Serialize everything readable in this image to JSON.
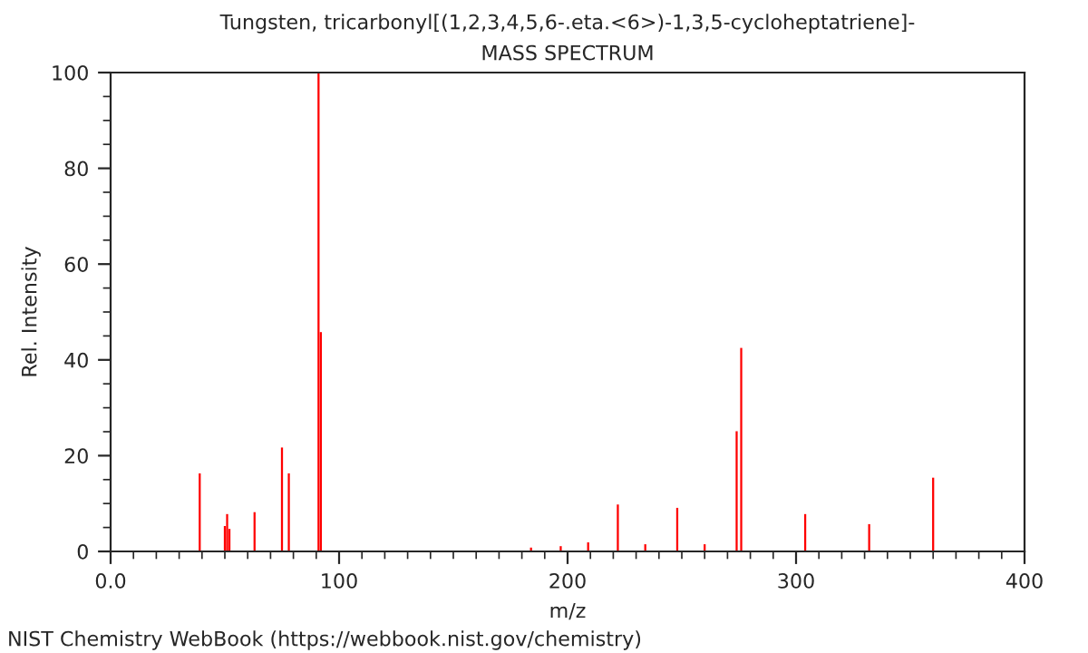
{
  "chart_data": {
    "type": "bar",
    "title": "Tungsten, tricarbonyl[(1,2,3,4,5,6-.eta.<6>)-1,3,5-cycloheptatriene]-",
    "subtitle": "MASS SPECTRUM",
    "xlabel": "m/z",
    "ylabel": "Rel. Intensity",
    "x": [
      39,
      50,
      51,
      52,
      63,
      75,
      78,
      91,
      92,
      184,
      197,
      209,
      222,
      234,
      248,
      260,
      274,
      276,
      304,
      332,
      360
    ],
    "values": [
      16.3,
      5.3,
      7.8,
      4.7,
      8.2,
      21.7,
      16.3,
      100,
      45.8,
      0.8,
      1.1,
      1.9,
      9.8,
      1.5,
      9.1,
      1.5,
      25.1,
      42.5,
      7.8,
      5.7,
      15.4
    ],
    "color": "#ff0000",
    "xlim": [
      0,
      400
    ],
    "ylim": [
      0,
      100
    ],
    "xticks": [
      {
        "value": 0,
        "label": "0.0"
      },
      {
        "value": 10,
        "label": null
      },
      {
        "value": 20,
        "label": null
      },
      {
        "value": 30,
        "label": null
      },
      {
        "value": 40,
        "label": null
      },
      {
        "value": 50,
        "label": null
      },
      {
        "value": 60,
        "label": null
      },
      {
        "value": 70,
        "label": null
      },
      {
        "value": 80,
        "label": null
      },
      {
        "value": 90,
        "label": null
      },
      100,
      {
        "value": 110,
        "label": null
      },
      {
        "value": 120,
        "label": null
      },
      {
        "value": 130,
        "label": null
      },
      {
        "value": 140,
        "label": null
      },
      {
        "value": 150,
        "label": null
      },
      {
        "value": 160,
        "label": null
      },
      {
        "value": 170,
        "label": null
      },
      {
        "value": 180,
        "label": null
      },
      {
        "value": 190,
        "label": null
      },
      200,
      {
        "value": 210,
        "label": null
      },
      {
        "value": 220,
        "label": null
      },
      {
        "value": 230,
        "label": null
      },
      {
        "value": 240,
        "label": null
      },
      {
        "value": 250,
        "label": null
      },
      {
        "value": 260,
        "label": null
      },
      {
        "value": 270,
        "label": null
      },
      {
        "value": 280,
        "label": null
      },
      {
        "value": 290,
        "label": null
      },
      300,
      {
        "value": 310,
        "label": null
      },
      {
        "value": 320,
        "label": null
      },
      {
        "value": 330,
        "label": null
      },
      {
        "value": 340,
        "label": null
      },
      {
        "value": 350,
        "label": null
      },
      {
        "value": 360,
        "label": null
      },
      {
        "value": 370,
        "label": null
      },
      {
        "value": 380,
        "label": null
      },
      {
        "value": 390,
        "label": null
      },
      400
    ],
    "yticks": [
      0,
      {
        "value": 5,
        "label": null
      },
      {
        "value": 10,
        "label": null
      },
      {
        "value": 15,
        "label": null
      },
      20,
      {
        "value": 25,
        "label": null
      },
      {
        "value": 30,
        "label": null
      },
      {
        "value": 35,
        "label": null
      },
      40,
      {
        "value": 45,
        "label": null
      },
      {
        "value": 50,
        "label": null
      },
      {
        "value": 55,
        "label": null
      },
      60,
      {
        "value": 65,
        "label": null
      },
      {
        "value": 70,
        "label": null
      },
      {
        "value": 75,
        "label": null
      },
      80,
      {
        "value": 85,
        "label": null
      },
      {
        "value": 90,
        "label": null
      },
      {
        "value": 95,
        "label": null
      },
      100
    ],
    "grid": false,
    "annotations": [
      "NIST Chemistry WebBook (https://webbook.nist.gov/chemistry)"
    ]
  }
}
